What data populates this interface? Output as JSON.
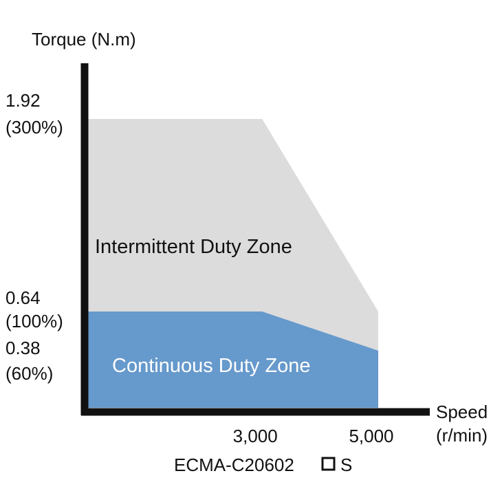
{
  "chart_data": {
    "type": "area",
    "ylabel": "Torque (N.m)",
    "xlabel": "Speed\n(r/min)",
    "x_ticks": [
      {
        "value": 3000,
        "label": "3,000"
      },
      {
        "value": 5000,
        "label": "5,000"
      }
    ],
    "y_ticks": [
      {
        "value": 1.92,
        "label": "1.92",
        "pct": "(300%)"
      },
      {
        "value": 0.64,
        "label": "0.64",
        "pct": "(100%)"
      },
      {
        "value": 0.38,
        "label": "0.38",
        "pct": "(60%)"
      }
    ],
    "series": [
      {
        "name": "Intermittent Duty Zone",
        "color": "#dcdcdc",
        "x": [
          0,
          3000,
          5000,
          5000
        ],
        "y": [
          1.92,
          1.92,
          0.64,
          0
        ]
      },
      {
        "name": "Continuous Duty Zone",
        "color": "#6699cc",
        "x": [
          0,
          3000,
          5000,
          5000
        ],
        "y": [
          0.64,
          0.64,
          0.38,
          0
        ]
      }
    ],
    "xlim": [
      0,
      6000
    ],
    "ylim": [
      0,
      2.3
    ],
    "grid": false,
    "model": {
      "prefix": "ECMA-C20602",
      "suffix": "S"
    }
  }
}
